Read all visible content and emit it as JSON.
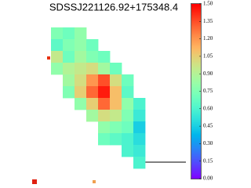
{
  "chart_data": {
    "type": "heatmap",
    "title": "SDSSJ221126.92+175348.4",
    "colormap": "rainbow",
    "zlim": [
      0,
      1.5
    ],
    "zticks": [
      {
        "value": 0,
        "label": "0.00"
      },
      {
        "value": 0.15,
        "label": "0.15"
      },
      {
        "value": 0.3,
        "label": "0.30"
      },
      {
        "value": 0.45,
        "label": "0.45"
      },
      {
        "value": 0.6,
        "label": "0.60"
      },
      {
        "value": 0.75,
        "label": "0.75"
      },
      {
        "value": 0.9,
        "label": "0.90"
      },
      {
        "value": 1.05,
        "label": "1.05"
      },
      {
        "value": 1.2,
        "label": "1.20"
      },
      {
        "value": 1.35,
        "label": "1.35"
      },
      {
        "value": 1.5,
        "label": "1.50"
      }
    ],
    "z": [
      [
        null,
        0.75,
        0.7,
        0.8,
        null,
        null,
        null,
        null,
        null,
        null
      ],
      [
        null,
        0.65,
        0.75,
        0.8,
        0.7,
        null,
        null,
        null,
        null,
        null
      ],
      [
        null,
        0.95,
        0.7,
        0.85,
        0.75,
        0.7,
        null,
        null,
        null,
        null
      ],
      [
        null,
        0.8,
        0.9,
        0.95,
        1.0,
        0.85,
        0.7,
        null,
        null,
        null
      ],
      [
        null,
        null,
        0.85,
        1.0,
        1.2,
        1.35,
        1.0,
        0.7,
        null,
        null
      ],
      [
        null,
        null,
        0.75,
        1.05,
        1.3,
        1.45,
        1.1,
        0.65,
        null,
        null
      ],
      [
        null,
        null,
        null,
        0.8,
        1.05,
        1.3,
        1.1,
        0.8,
        0.6,
        null
      ],
      [
        null,
        null,
        null,
        null,
        0.85,
        1.0,
        0.95,
        0.75,
        0.55,
        null
      ],
      [
        null,
        null,
        null,
        null,
        null,
        0.8,
        0.75,
        0.7,
        0.45,
        null
      ],
      [
        null,
        null,
        null,
        null,
        null,
        0.7,
        0.65,
        0.6,
        0.5,
        null
      ],
      [
        null,
        null,
        null,
        null,
        null,
        null,
        null,
        0.6,
        0.55,
        null
      ],
      [
        null,
        null,
        null,
        null,
        null,
        null,
        null,
        null,
        0.6,
        null
      ]
    ]
  }
}
